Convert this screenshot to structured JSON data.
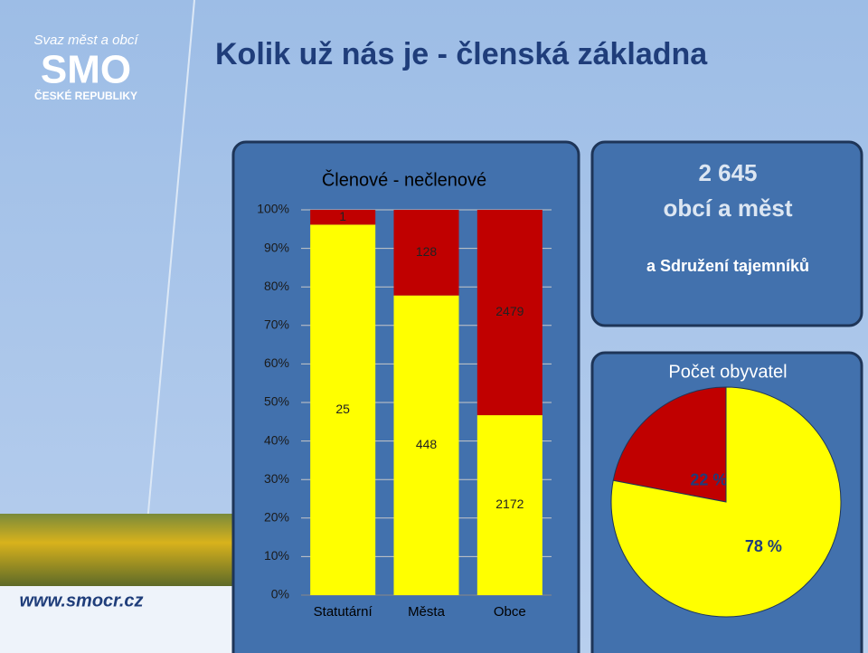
{
  "slide_title": "Kolik už nás je - členská základna",
  "logo": {
    "top": "Svaz měst a obcí",
    "main": "SMO",
    "bottom": "ČESKÉ REPUBLIKY"
  },
  "url": "www.smocr.cz",
  "info_box": {
    "number": "2 645",
    "line2": "obcí a měst",
    "line3": "a Sdružení tajemníků"
  },
  "chart_data": [
    {
      "type": "bar",
      "stacking": "percent",
      "title": "Členové - nečlenové",
      "categories": [
        "Statutární",
        "Města",
        "Obce"
      ],
      "series": [
        {
          "color": "#ffff00",
          "values": [
            25,
            448,
            2172
          ]
        },
        {
          "color": "#c00000",
          "values": [
            1,
            128,
            2479
          ]
        }
      ],
      "ylim": [
        0,
        100
      ],
      "yticks": [
        {
          "value": 0,
          "label": "0%"
        },
        {
          "value": 10,
          "label": "10%"
        },
        {
          "value": 20,
          "label": "20%"
        },
        {
          "value": 30,
          "label": "30%"
        },
        {
          "value": 40,
          "label": "40%"
        },
        {
          "value": 50,
          "label": "50%"
        },
        {
          "value": 60,
          "label": "60%"
        },
        {
          "value": 70,
          "label": "70%"
        },
        {
          "value": 80,
          "label": "80%"
        },
        {
          "value": 90,
          "label": "90%"
        },
        {
          "value": 100,
          "label": "100%"
        }
      ],
      "grid": true
    },
    {
      "type": "pie",
      "title": "Počet obyvatel",
      "values": [
        22,
        78
      ],
      "value_labels": [
        "22 %",
        "78 %"
      ],
      "colors": [
        "#c00000",
        "#ffff00"
      ]
    }
  ]
}
